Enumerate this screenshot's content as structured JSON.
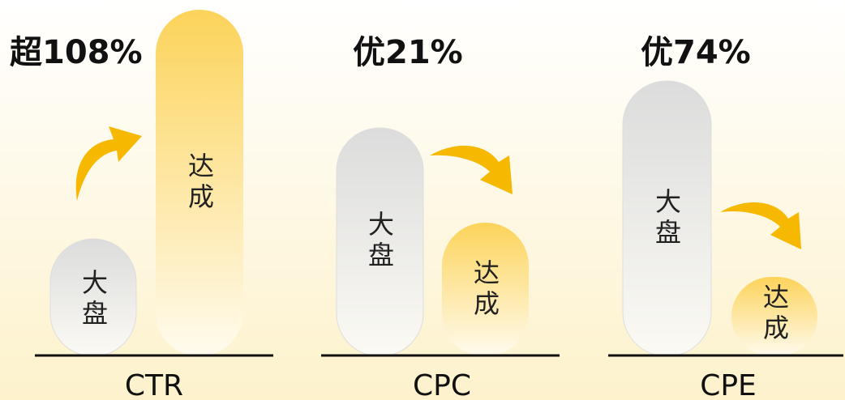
{
  "groups": [
    {
      "headline": "超108%",
      "base_label": "大盘",
      "result_label": "达成",
      "metric": "CTR"
    },
    {
      "headline": "优21%",
      "base_label": "大盘",
      "result_label": "达成",
      "metric": "CPC"
    },
    {
      "headline": "优74%",
      "base_label": "大盘",
      "result_label": "达成",
      "metric": "CPE"
    }
  ]
}
